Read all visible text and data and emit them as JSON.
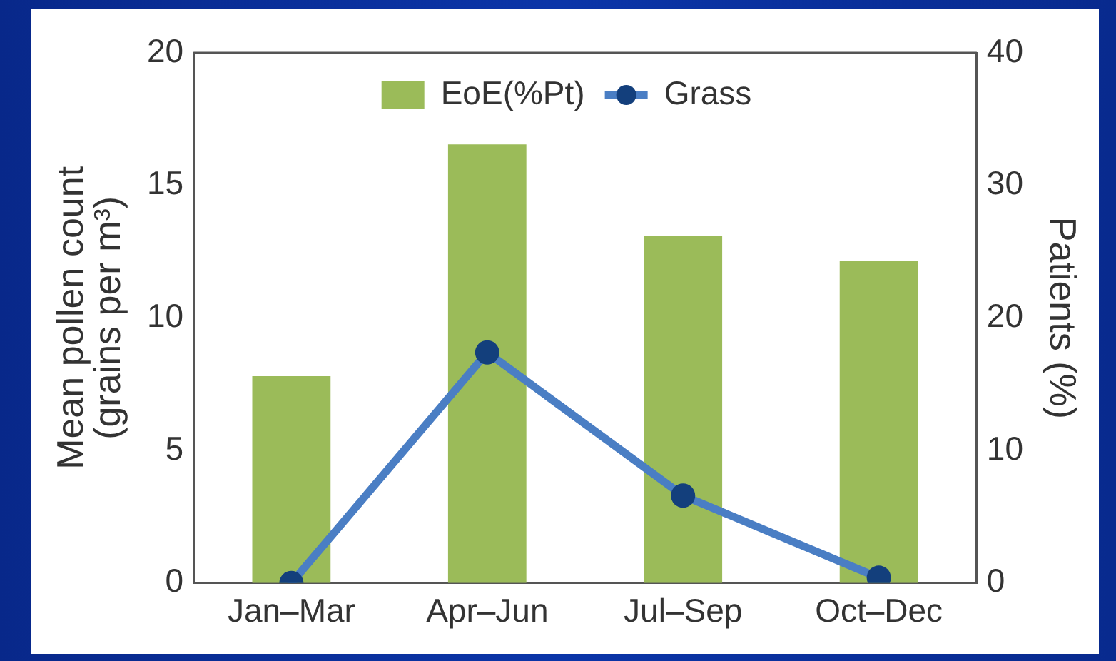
{
  "chart_data": {
    "type": "bar",
    "categories": [
      "Jan–Mar",
      "Apr–Jun",
      "Jul–Sep",
      "Oct–Dec"
    ],
    "ylabel": "Mean pollen count (grains per m³)",
    "y2label": "Patients (%)",
    "series": [
      {
        "name": "EoE(%Pt)",
        "axis": "y2",
        "color": "#9bbb59",
        "values": [
          15.6,
          33.1,
          26.2,
          24.3
        ]
      },
      {
        "name": "Grass",
        "type": "line",
        "axis": "y",
        "color": "#4a7ec4",
        "colors": [
          "#133f7c",
          "#133f7c",
          "#133f7c",
          "#133f7c"
        ],
        "values": [
          0,
          8.7,
          3.3,
          0.2
        ]
      }
    ],
    "ylim": [
      0,
      20
    ],
    "yticks": [
      0,
      5,
      10,
      15,
      20
    ],
    "y2lim": [
      0,
      40
    ],
    "y2ticks": [
      0,
      10,
      20,
      30,
      40
    ],
    "legend": "top",
    "marker": "circle",
    "line_style": "solid"
  }
}
